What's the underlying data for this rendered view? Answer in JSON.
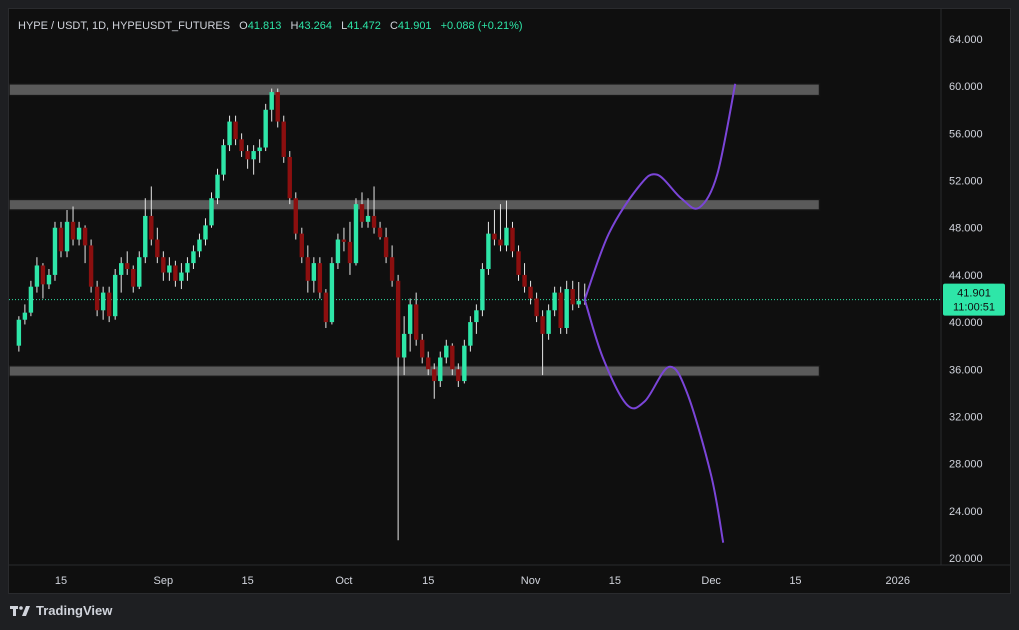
{
  "header": {
    "symbol": "HYPE / USDT, 1D, HYPEUSDT_FUTURES",
    "open_label": "O",
    "open": "41.813",
    "high_label": "H",
    "high": "43.264",
    "low_label": "L",
    "low": "41.472",
    "close_label": "C",
    "close": "41.901",
    "change": "+0.088 (+0.21%)"
  },
  "price_tag": {
    "price": "41.901",
    "countdown": "11:00:51"
  },
  "footer": {
    "brand": "TradingView",
    "logo_icon": "tradingview-logo-icon"
  },
  "colors": {
    "up": "#2ee6a8",
    "down": "#8b0f0f",
    "projection": "#7b45d8",
    "zone": "#5a5a5a",
    "tag": "#2ee6a8"
  },
  "chart_data": {
    "type": "candlestick",
    "y_axis": {
      "ticks": [
        "20.000",
        "24.000",
        "28.000",
        "32.000",
        "36.000",
        "40.000",
        "44.000",
        "48.000",
        "52.000",
        "56.000",
        "60.000",
        "64.000"
      ],
      "range": [
        20,
        64
      ]
    },
    "x_axis": {
      "ticks": [
        "15",
        "Sep",
        "15",
        "Oct",
        "15",
        "Nov",
        "15",
        "Dec",
        "15",
        "2026"
      ]
    },
    "current_price": 41.901,
    "zones": [
      {
        "low": 59.2,
        "high": 60.2,
        "end": "2025-12-19"
      },
      {
        "low": 49.5,
        "high": 50.4,
        "end": "2025-12-19"
      },
      {
        "low": 35.4,
        "high": 36.3,
        "end": "2025-12-19"
      }
    ],
    "candles": [
      [
        "2025-08-08",
        38,
        40.5,
        37.5,
        40.2
      ],
      [
        "2025-08-09",
        40.2,
        41.5,
        39.8,
        40.8
      ],
      [
        "2025-08-10",
        40.8,
        43.5,
        40.5,
        43
      ],
      [
        "2025-08-11",
        43,
        45.5,
        42.5,
        44.8
      ],
      [
        "2025-08-12",
        44.8,
        45,
        42,
        43.2
      ],
      [
        "2025-08-13",
        43.2,
        44.5,
        42.8,
        44
      ],
      [
        "2025-08-14",
        44,
        48.5,
        43.5,
        48
      ],
      [
        "2025-08-15",
        48,
        48.5,
        45.5,
        46
      ],
      [
        "2025-08-16",
        46,
        49.5,
        45.5,
        48.5
      ],
      [
        "2025-08-17",
        48.5,
        49.8,
        46.5,
        47
      ],
      [
        "2025-08-18",
        47,
        48.5,
        46.5,
        48
      ],
      [
        "2025-08-19",
        48,
        48.2,
        45,
        46.5
      ],
      [
        "2025-08-20",
        46.5,
        47,
        42.5,
        43
      ],
      [
        "2025-08-21",
        43,
        43.5,
        40.5,
        41
      ],
      [
        "2025-08-22",
        41,
        43,
        40.2,
        42.5
      ],
      [
        "2025-08-23",
        42.5,
        43,
        40,
        40.5
      ],
      [
        "2025-08-24",
        40.5,
        44.5,
        40.2,
        44
      ],
      [
        "2025-08-25",
        44,
        45.5,
        42.5,
        45
      ],
      [
        "2025-08-26",
        45,
        46,
        44,
        44.5
      ],
      [
        "2025-08-27",
        44.5,
        44.8,
        42.5,
        43
      ],
      [
        "2025-08-28",
        43,
        46,
        42.8,
        45.5
      ],
      [
        "2025-08-29",
        45.5,
        50.5,
        45,
        49
      ],
      [
        "2025-08-30",
        49,
        51.5,
        46.5,
        47
      ],
      [
        "2025-08-31",
        47,
        48,
        45,
        45.5
      ],
      [
        "2025-09-01",
        45.5,
        46,
        43.5,
        44.2
      ],
      [
        "2025-09-02",
        44.2,
        45.5,
        43.5,
        44.8
      ],
      [
        "2025-09-03",
        44.8,
        45.2,
        43,
        43.5
      ],
      [
        "2025-09-04",
        43.5,
        45,
        42.8,
        44.2
      ],
      [
        "2025-09-05",
        44.2,
        45.5,
        43.5,
        45
      ],
      [
        "2025-09-06",
        45,
        46.5,
        44.5,
        46
      ],
      [
        "2025-09-07",
        46,
        47.5,
        45.5,
        47
      ],
      [
        "2025-09-08",
        47,
        48.8,
        46.5,
        48.2
      ],
      [
        "2025-09-09",
        48.2,
        51,
        48,
        50.5
      ],
      [
        "2025-09-10",
        50.5,
        53,
        50,
        52.5
      ],
      [
        "2025-09-11",
        52.5,
        55.5,
        52,
        55
      ],
      [
        "2025-09-12",
        55,
        57.5,
        54.5,
        57
      ],
      [
        "2025-09-13",
        57,
        57.5,
        55,
        55.5
      ],
      [
        "2025-09-14",
        55.5,
        56,
        54,
        54.5
      ],
      [
        "2025-09-15",
        54.5,
        55,
        53,
        53.8
      ],
      [
        "2025-09-16",
        53.8,
        55,
        52.5,
        54.5
      ],
      [
        "2025-09-17",
        54.5,
        55.5,
        53.5,
        54.8
      ],
      [
        "2025-09-18",
        54.8,
        58.5,
        54.5,
        58
      ],
      [
        "2025-09-19",
        58,
        59.8,
        57,
        59.5
      ],
      [
        "2025-09-20",
        59.5,
        59.8,
        56.5,
        57
      ],
      [
        "2025-09-21",
        57,
        57.5,
        53.5,
        54
      ],
      [
        "2025-09-22",
        54,
        54.5,
        50,
        50.5
      ],
      [
        "2025-09-23",
        50.5,
        51,
        47,
        47.5
      ],
      [
        "2025-09-24",
        47.5,
        48,
        45,
        45.5
      ],
      [
        "2025-09-25",
        45.5,
        46.5,
        42.5,
        43.5
      ],
      [
        "2025-09-26",
        43.5,
        45.5,
        42.5,
        45
      ],
      [
        "2025-09-27",
        45,
        45.5,
        42,
        42.5
      ],
      [
        "2025-09-28",
        42.5,
        42.8,
        39.5,
        40
      ],
      [
        "2025-09-29",
        40,
        45.5,
        39.8,
        45
      ],
      [
        "2025-09-30",
        45,
        47.5,
        44.5,
        47
      ],
      [
        "2025-10-01",
        47,
        48,
        46,
        46.8
      ],
      [
        "2025-10-02",
        46.8,
        48.5,
        44,
        45
      ],
      [
        "2025-10-03",
        45,
        50.5,
        44.8,
        50
      ],
      [
        "2025-10-04",
        50,
        51,
        48,
        48.5
      ],
      [
        "2025-10-05",
        48.5,
        50.5,
        48,
        49
      ],
      [
        "2025-10-06",
        49,
        51.5,
        47.5,
        48
      ],
      [
        "2025-10-07",
        48,
        48.5,
        47,
        47.2
      ],
      [
        "2025-10-08",
        47.2,
        48,
        45,
        45.5
      ],
      [
        "2025-10-09",
        45.5,
        46.5,
        43,
        43.5
      ],
      [
        "2025-10-10",
        43.5,
        44,
        21.5,
        37
      ],
      [
        "2025-10-11",
        37,
        40.5,
        35.5,
        39
      ],
      [
        "2025-10-12",
        39,
        42,
        37.5,
        41.5
      ],
      [
        "2025-10-13",
        41.5,
        42.5,
        38,
        38.5
      ],
      [
        "2025-10-14",
        38.5,
        39,
        36.5,
        37
      ],
      [
        "2025-10-15",
        37,
        37.5,
        35.5,
        36
      ],
      [
        "2025-10-16",
        36,
        36.5,
        33.5,
        35
      ],
      [
        "2025-10-17",
        35,
        37.5,
        34.5,
        37
      ],
      [
        "2025-10-18",
        37,
        38.5,
        36.5,
        38
      ],
      [
        "2025-10-19",
        38,
        38.2,
        35.5,
        36
      ],
      [
        "2025-10-20",
        36,
        36.5,
        34.5,
        35
      ],
      [
        "2025-10-21",
        35,
        38.5,
        34.8,
        38
      ],
      [
        "2025-10-22",
        38,
        40.5,
        37.5,
        40
      ],
      [
        "2025-10-23",
        40,
        41.5,
        39,
        41
      ],
      [
        "2025-10-24",
        41,
        45,
        40.5,
        44.5
      ],
      [
        "2025-10-25",
        44.5,
        48.5,
        44,
        47.5
      ],
      [
        "2025-10-26",
        47.5,
        49.5,
        46.5,
        47
      ],
      [
        "2025-10-27",
        47,
        50,
        46,
        46.5
      ],
      [
        "2025-10-28",
        46.5,
        50.3,
        46,
        48
      ],
      [
        "2025-10-29",
        48,
        48.5,
        45.5,
        46
      ],
      [
        "2025-10-30",
        46,
        46.5,
        43.5,
        44
      ],
      [
        "2025-10-31",
        44,
        45,
        42.5,
        43
      ],
      [
        "2025-11-01",
        43,
        43.5,
        41.5,
        42
      ],
      [
        "2025-11-02",
        42,
        42.5,
        40,
        40.5
      ],
      [
        "2025-11-03",
        40.5,
        41,
        35.5,
        39
      ],
      [
        "2025-11-04",
        39,
        41.5,
        38.5,
        41
      ],
      [
        "2025-11-05",
        41,
        43,
        40.5,
        42.5
      ],
      [
        "2025-11-06",
        42.5,
        43,
        39,
        39.5
      ],
      [
        "2025-11-07",
        39.5,
        43.5,
        39,
        42.8
      ],
      [
        "2025-11-08",
        42.8,
        43.5,
        41,
        41.5
      ],
      [
        "2025-11-09",
        41.5,
        43.4,
        41.2,
        41.813
      ],
      [
        "2025-11-10",
        41.813,
        43.264,
        41.472,
        41.901
      ]
    ],
    "projections": [
      {
        "points": [
          [
            "2025-11-10",
            41.9
          ],
          [
            "2025-11-14",
            47.5
          ],
          [
            "2025-11-19",
            51.5
          ],
          [
            "2025-11-22",
            52.5
          ],
          [
            "2025-11-26",
            50.5
          ],
          [
            "2025-11-29",
            49.7
          ],
          [
            "2025-12-02",
            52.5
          ],
          [
            "2025-12-05",
            60.2
          ]
        ]
      },
      {
        "points": [
          [
            "2025-11-10",
            41.9
          ],
          [
            "2025-11-13",
            37
          ],
          [
            "2025-11-17",
            33
          ],
          [
            "2025-11-20",
            33.3
          ],
          [
            "2025-11-24",
            36.2
          ],
          [
            "2025-11-27",
            34
          ],
          [
            "2025-12-01",
            27
          ],
          [
            "2025-12-03",
            21.3
          ]
        ]
      }
    ]
  }
}
